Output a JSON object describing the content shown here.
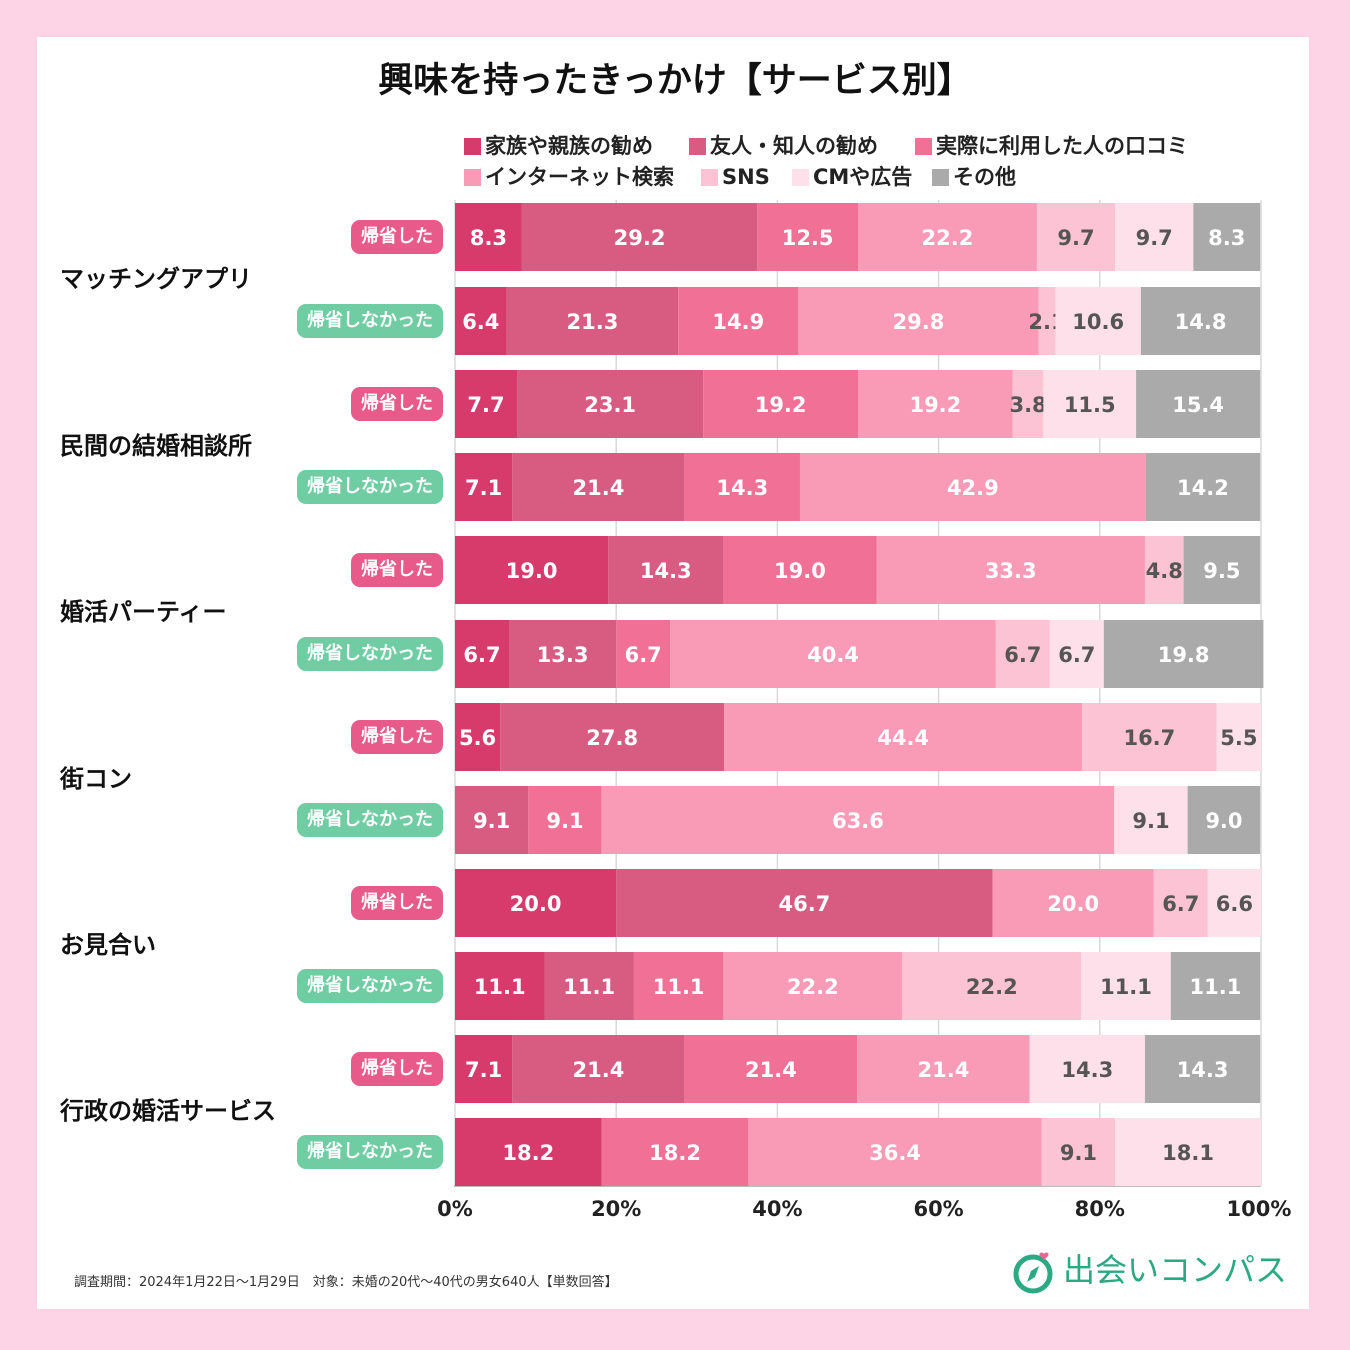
{
  "chart_data": {
    "type": "stacked-bar-horizontal",
    "title": "興味を持ったきっかけ【サービス別】",
    "legend": [
      {
        "name": "家族や親族の勧め",
        "color": "#d63b6c"
      },
      {
        "name": "友人・知人の勧め",
        "color": "#d85c82"
      },
      {
        "name": "実際に利用した人の口コミ",
        "color": "#f07096"
      },
      {
        "name": "インターネット検索",
        "color": "#f99ab6"
      },
      {
        "name": "SNS",
        "color": "#fcc3d4"
      },
      {
        "name": "CMや広告",
        "color": "#fde0e9"
      },
      {
        "name": "その他",
        "color": "#aaaaaa"
      }
    ],
    "x_ticks": [
      "0%",
      "20%",
      "40%",
      "60%",
      "80%",
      "100%"
    ],
    "xlim": [
      0,
      100
    ],
    "groups": [
      {
        "service": "マッチングアプリ",
        "rows": [
          {
            "label": "帰省した",
            "values": [
              8.3,
              29.2,
              12.5,
              22.2,
              9.7,
              9.7,
              8.3
            ]
          },
          {
            "label": "帰省しなかった",
            "values": [
              6.4,
              21.3,
              14.9,
              29.8,
              2.1,
              10.6,
              14.8
            ]
          }
        ]
      },
      {
        "service": "民間の結婚相談所",
        "rows": [
          {
            "label": "帰省した",
            "values": [
              7.7,
              23.1,
              19.2,
              19.2,
              3.8,
              11.5,
              15.4
            ]
          },
          {
            "label": "帰省しなかった",
            "values": [
              7.1,
              21.4,
              14.3,
              42.9,
              0,
              0,
              14.2
            ]
          }
        ]
      },
      {
        "service": "婚活パーティー",
        "rows": [
          {
            "label": "帰省した",
            "values": [
              19.0,
              14.3,
              19.0,
              33.3,
              4.8,
              0,
              9.5
            ]
          },
          {
            "label": "帰省しなかった",
            "values": [
              6.7,
              13.3,
              6.7,
              40.4,
              6.7,
              6.7,
              19.8
            ]
          }
        ]
      },
      {
        "service": "街コン",
        "rows": [
          {
            "label": "帰省した",
            "values": [
              5.6,
              27.8,
              0,
              44.4,
              16.7,
              5.5,
              0
            ]
          },
          {
            "label": "帰省しなかった",
            "values": [
              0,
              9.1,
              9.1,
              63.6,
              0,
              9.1,
              9.0
            ]
          }
        ]
      },
      {
        "service": "お見合い",
        "rows": [
          {
            "label": "帰省した",
            "values": [
              20.0,
              46.7,
              0,
              20.0,
              6.7,
              6.6,
              0
            ]
          },
          {
            "label": "帰省しなかった",
            "values": [
              11.1,
              11.1,
              11.1,
              22.2,
              22.2,
              11.1,
              11.1
            ]
          }
        ]
      },
      {
        "service": "行政の婚活サービス",
        "rows": [
          {
            "label": "帰省した",
            "values": [
              7.1,
              21.4,
              21.4,
              21.4,
              0,
              14.3,
              14.3
            ]
          },
          {
            "label": "帰省しなかった",
            "values": [
              18.2,
              0,
              18.2,
              36.4,
              9.1,
              18.1,
              0
            ]
          }
        ]
      }
    ]
  },
  "footnote": "調査期間：2024年1月22日〜1月29日　対象：未婚の20代〜40代の男女640人【単数回答】",
  "brand": {
    "name": "出会いコンパス",
    "icon": "compass-icon",
    "color": "#2aa983",
    "accent": "#f06292"
  }
}
